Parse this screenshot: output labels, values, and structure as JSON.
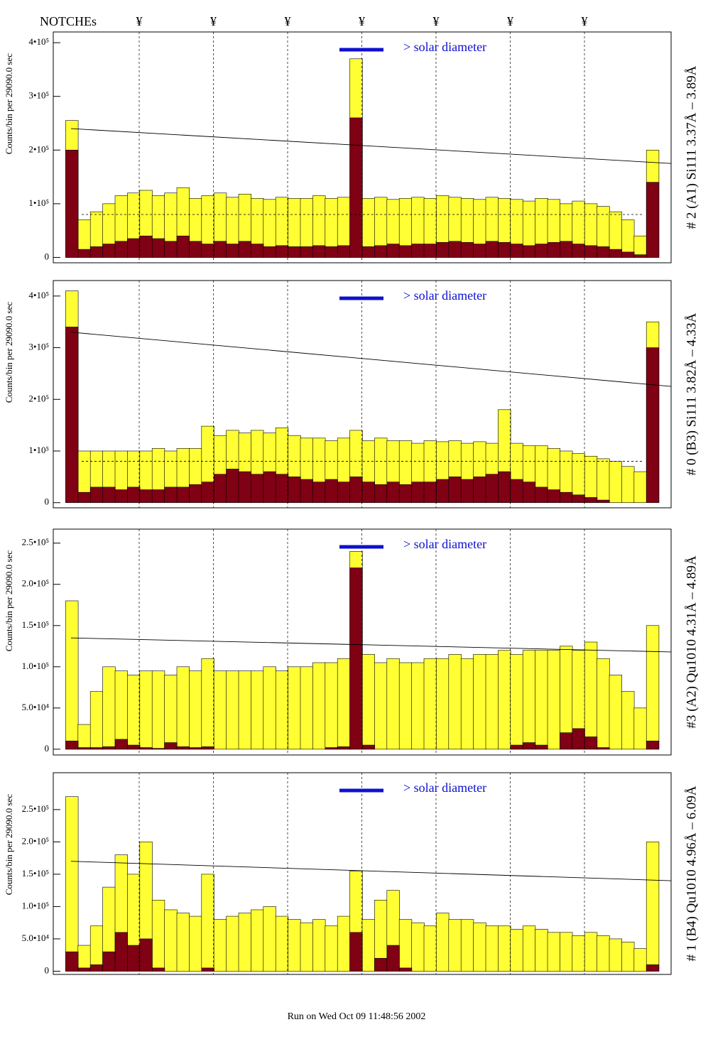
{
  "notches": {
    "label": "NOTCHEs",
    "marks": [
      "¥",
      "¥",
      "¥",
      "¥",
      "¥",
      "¥",
      "¥"
    ]
  },
  "footer": "Run on Wed Oct 09 11:48:56 2002",
  "chart_data": [
    {
      "type": "histogram",
      "side_title": "# 2 (A1) Si111  3.37Å – 3.89Å",
      "y_label": "Counts/bin per  29090.0 sec",
      "annotation": "> solar diameter",
      "ylim": [
        -10000,
        420000
      ],
      "yticks": [
        0,
        {
          "value": 100000,
          "label": "1•10⁵"
        },
        {
          "value": 200000,
          "label": "2•10⁵"
        },
        {
          "value": 300000,
          "label": "3•10⁵"
        },
        {
          "value": 400000,
          "label": "4•10⁵"
        }
      ],
      "series": [
        {
          "color": "#ffff33",
          "values": [
            0,
            255000,
            70000,
            85000,
            100000,
            115000,
            120000,
            125000,
            115000,
            120000,
            130000,
            110000,
            115000,
            120000,
            112000,
            118000,
            110000,
            108000,
            112000,
            110000,
            110000,
            115000,
            110000,
            112000,
            370000,
            110000,
            112000,
            108000,
            110000,
            112000,
            110000,
            115000,
            112000,
            110000,
            108000,
            112000,
            110000,
            108000,
            105000,
            110000,
            108000,
            100000,
            105000,
            100000,
            95000,
            85000,
            70000,
            40000,
            200000,
            0
          ]
        },
        {
          "color": "#800014",
          "values": [
            0,
            200000,
            15000,
            20000,
            25000,
            30000,
            35000,
            40000,
            35000,
            30000,
            40000,
            30000,
            25000,
            30000,
            25000,
            30000,
            25000,
            20000,
            22000,
            20000,
            20000,
            22000,
            20000,
            22000,
            260000,
            20000,
            22000,
            25000,
            22000,
            25000,
            25000,
            28000,
            30000,
            28000,
            25000,
            30000,
            28000,
            25000,
            22000,
            25000,
            28000,
            30000,
            25000,
            22000,
            20000,
            15000,
            10000,
            5000,
            140000,
            0
          ]
        }
      ],
      "fit_line": [
        240000,
        175000
      ],
      "dashed_level": 80000
    },
    {
      "type": "histogram",
      "side_title": "# 0 (B3) Si111  3.82Å – 4.33Å",
      "y_label": "Counts/bin per  29090.0 sec",
      "annotation": "> solar diameter",
      "ylim": [
        -10000,
        430000
      ],
      "yticks": [
        0,
        {
          "value": 100000,
          "label": "1•10⁵"
        },
        {
          "value": 200000,
          "label": "2•10⁵"
        },
        {
          "value": 300000,
          "label": "3•10⁵"
        },
        {
          "value": 400000,
          "label": "4•10⁵"
        }
      ],
      "series": [
        {
          "color": "#ffff33",
          "values": [
            0,
            410000,
            100000,
            100000,
            100000,
            100000,
            100000,
            100000,
            105000,
            100000,
            105000,
            105000,
            148000,
            130000,
            140000,
            135000,
            140000,
            135000,
            145000,
            130000,
            125000,
            125000,
            120000,
            125000,
            140000,
            120000,
            125000,
            120000,
            120000,
            115000,
            120000,
            118000,
            120000,
            115000,
            118000,
            115000,
            180000,
            115000,
            110000,
            110000,
            105000,
            100000,
            95000,
            90000,
            85000,
            80000,
            70000,
            60000,
            350000,
            0
          ]
        },
        {
          "color": "#800014",
          "values": [
            0,
            340000,
            20000,
            30000,
            30000,
            25000,
            30000,
            25000,
            25000,
            30000,
            30000,
            35000,
            40000,
            55000,
            65000,
            60000,
            55000,
            60000,
            55000,
            50000,
            45000,
            40000,
            45000,
            40000,
            50000,
            40000,
            35000,
            40000,
            35000,
            40000,
            40000,
            45000,
            50000,
            45000,
            50000,
            55000,
            60000,
            45000,
            40000,
            30000,
            25000,
            20000,
            15000,
            10000,
            5000,
            0,
            0,
            0,
            300000,
            0
          ]
        }
      ],
      "fit_line": [
        330000,
        225000
      ],
      "dashed_level": 80000
    },
    {
      "type": "histogram",
      "side_title": "#3 (A2) Qu1010  4.31Å – 4.89Å",
      "y_label": "Counts/bin per  29090.0 sec",
      "annotation": "> solar diameter",
      "ylim": [
        -7000,
        267000
      ],
      "yticks": [
        0,
        {
          "value": 50000,
          "label": "5.0•10⁴"
        },
        {
          "value": 100000,
          "label": "1.0•10⁵"
        },
        {
          "value": 150000,
          "label": "1.5•10⁵"
        },
        {
          "value": 200000,
          "label": "2.0•10⁵"
        },
        {
          "value": 250000,
          "label": "2.5•10⁵"
        }
      ],
      "series": [
        {
          "color": "#ffff33",
          "values": [
            0,
            180000,
            30000,
            70000,
            100000,
            95000,
            90000,
            95000,
            95000,
            90000,
            100000,
            95000,
            110000,
            95000,
            95000,
            95000,
            95000,
            100000,
            95000,
            100000,
            100000,
            105000,
            105000,
            110000,
            240000,
            115000,
            105000,
            110000,
            105000,
            105000,
            110000,
            110000,
            115000,
            110000,
            115000,
            115000,
            120000,
            115000,
            120000,
            120000,
            120000,
            125000,
            120000,
            130000,
            110000,
            90000,
            70000,
            50000,
            150000,
            0
          ]
        },
        {
          "color": "#800014",
          "values": [
            0,
            10000,
            2000,
            2000,
            3000,
            12000,
            5000,
            2000,
            1000,
            8000,
            3000,
            2000,
            3000,
            0,
            0,
            0,
            0,
            0,
            0,
            0,
            0,
            0,
            2000,
            3000,
            220000,
            5000,
            0,
            0,
            0,
            0,
            0,
            0,
            0,
            0,
            0,
            0,
            0,
            5000,
            8000,
            5000,
            0,
            20000,
            25000,
            15000,
            2000,
            0,
            0,
            0,
            10000,
            0
          ]
        }
      ],
      "fit_line": [
        135000,
        118000
      ]
    },
    {
      "type": "histogram",
      "side_title": "# 1 (B4) Qu1010 4.96Å – 6.09Å",
      "y_label": "Counts/bin per  29090.0 sec",
      "annotation": "> solar diameter",
      "ylim": [
        -5000,
        307000
      ],
      "yticks": [
        0,
        {
          "value": 50000,
          "label": "5.0•10⁴"
        },
        {
          "value": 100000,
          "label": "1.0•10⁵"
        },
        {
          "value": 150000,
          "label": "1.5•10⁵"
        },
        {
          "value": 200000,
          "label": "2.0•10⁵"
        },
        {
          "value": 250000,
          "label": "2.5•10⁵"
        }
      ],
      "series": [
        {
          "color": "#ffff33",
          "values": [
            0,
            270000,
            40000,
            70000,
            130000,
            180000,
            150000,
            200000,
            110000,
            95000,
            90000,
            85000,
            150000,
            80000,
            85000,
            90000,
            95000,
            100000,
            85000,
            80000,
            75000,
            80000,
            70000,
            85000,
            155000,
            80000,
            110000,
            125000,
            80000,
            75000,
            70000,
            90000,
            80000,
            80000,
            75000,
            70000,
            70000,
            65000,
            70000,
            65000,
            60000,
            60000,
            55000,
            60000,
            55000,
            50000,
            45000,
            35000,
            200000,
            0
          ]
        },
        {
          "color": "#800014",
          "values": [
            0,
            30000,
            5000,
            10000,
            30000,
            60000,
            40000,
            50000,
            5000,
            0,
            0,
            0,
            5000,
            0,
            0,
            0,
            0,
            0,
            0,
            0,
            0,
            0,
            0,
            0,
            60000,
            0,
            20000,
            40000,
            5000,
            0,
            0,
            0,
            0,
            0,
            0,
            0,
            0,
            0,
            0,
            0,
            0,
            0,
            0,
            0,
            0,
            0,
            0,
            0,
            10000,
            0
          ]
        }
      ],
      "fit_line": [
        170000,
        140000
      ]
    }
  ]
}
